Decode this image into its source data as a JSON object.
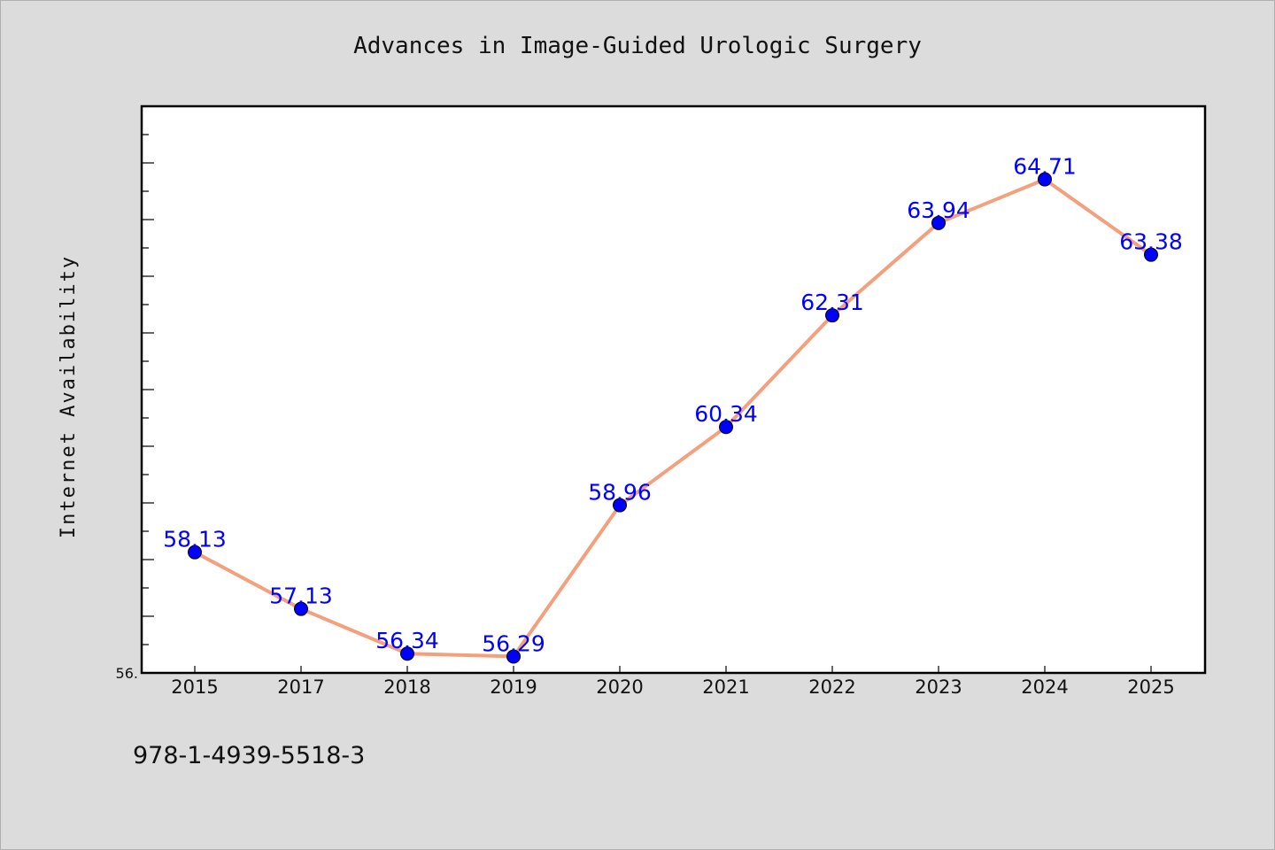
{
  "colors": {
    "background": "#dcdcdc",
    "plot_background": "#ffffff",
    "line": "#f4a07c",
    "marker": "#0000ff",
    "data_label": "#0000ff",
    "axes": "#000000"
  },
  "footer": {
    "isbn": "978-1-4939-5518-3"
  },
  "chart_data": {
    "type": "line",
    "title": "Advances in Image-Guided Urologic Surgery",
    "xlabel": "",
    "ylabel": "Internet Availability",
    "categories": [
      "2015",
      "2017",
      "2018",
      "2019",
      "2020",
      "2021",
      "2022",
      "2023",
      "2024",
      "2025"
    ],
    "series": [
      {
        "values": [
          58.13,
          57.13,
          56.34,
          56.29,
          58.96,
          60.34,
          62.31,
          63.94,
          64.71,
          63.38
        ],
        "labels": [
          "58.13",
          "57.13",
          "56.34",
          "56.29",
          "58.96",
          "60.34",
          "62.31",
          "63.94",
          "64.71",
          "63.38"
        ]
      }
    ],
    "y_tick_label": "56.",
    "ylim": [
      56.0,
      66.0
    ],
    "grid": false,
    "legend": "none"
  }
}
